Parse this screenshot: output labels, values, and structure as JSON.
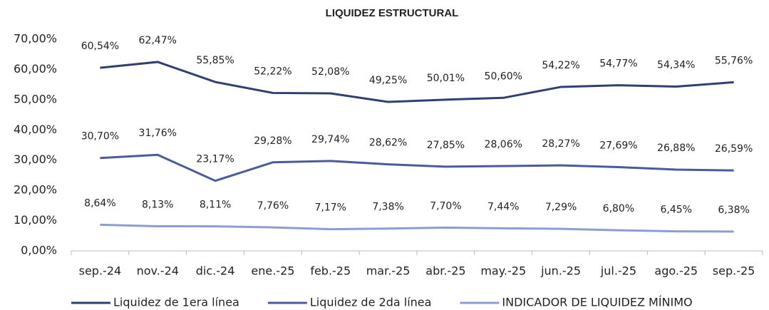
{
  "chart_data": {
    "type": "line",
    "title": "LIQUIDEZ ESTRUCTURAL",
    "categories": [
      "sep.-24",
      "nov.-24",
      "dic.-24",
      "ene.-25",
      "feb.-25",
      "mar.-25",
      "abr.-25",
      "may.-25",
      "jun.-25",
      "jul.-25",
      "ago.-25",
      "sep.-25"
    ],
    "series": [
      {
        "name": "Liquidez de 1era línea",
        "color": "#2f3f70",
        "values": [
          60.54,
          62.47,
          55.85,
          52.22,
          52.08,
          49.25,
          50.01,
          50.6,
          54.22,
          54.77,
          54.34,
          55.76
        ],
        "value_labels": [
          "60,54%",
          "62,47%",
          "55,85%",
          "52,22%",
          "52,08%",
          "49,25%",
          "50,01%",
          "50,60%",
          "54,22%",
          "54,77%",
          "54,34%",
          "55,76%"
        ]
      },
      {
        "name": "Liquidez de 2da línea",
        "color": "#4a5a9c",
        "values": [
          30.7,
          31.76,
          23.17,
          29.28,
          29.74,
          28.62,
          27.85,
          28.06,
          28.27,
          27.69,
          26.88,
          26.59
        ],
        "value_labels": [
          "30,70%",
          "31,76%",
          "23,17%",
          "29,28%",
          "29,74%",
          "28,62%",
          "27,85%",
          "28,06%",
          "28,27%",
          "27,69%",
          "26,88%",
          "26,59%"
        ]
      },
      {
        "name": "INDICADOR DE LIQUIDEZ MÍNIMO",
        "color": "#8c9dcf",
        "values": [
          8.64,
          8.13,
          8.11,
          7.76,
          7.17,
          7.38,
          7.7,
          7.44,
          7.29,
          6.8,
          6.45,
          6.38
        ],
        "value_labels": [
          "8,64%",
          "8,13%",
          "8,11%",
          "7,76%",
          "7,17%",
          "7,38%",
          "7,70%",
          "7,44%",
          "7,29%",
          "6,80%",
          "6,45%",
          "6,38%"
        ]
      }
    ],
    "ylim": [
      0,
      70
    ],
    "yticks": [
      {
        "value": 0,
        "label": "0,00%"
      },
      {
        "value": 10,
        "label": "10,00%"
      },
      {
        "value": 20,
        "label": "20,00%"
      },
      {
        "value": 30,
        "label": "30,00%"
      },
      {
        "value": 40,
        "label": "40,00%"
      },
      {
        "value": 50,
        "label": "50,00%"
      },
      {
        "value": 60,
        "label": "60,00%"
      },
      {
        "value": 70,
        "label": "70,00%"
      }
    ],
    "grid": false,
    "legend": "bottom"
  }
}
